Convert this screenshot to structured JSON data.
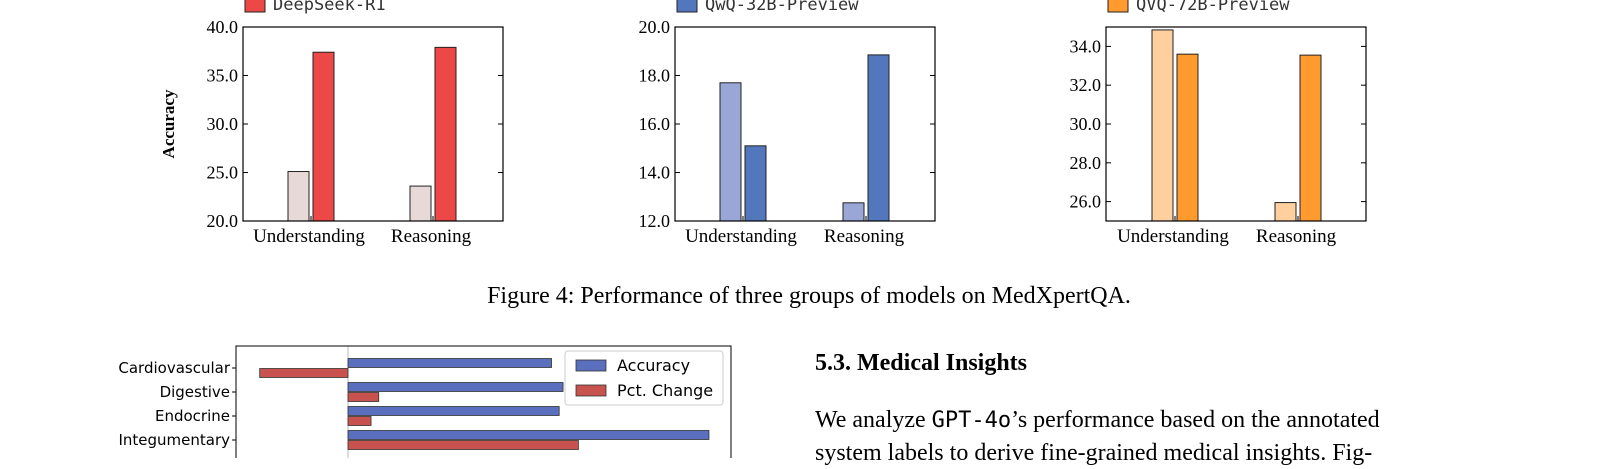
{
  "chart_data": [
    {
      "type": "bar",
      "legend": [
        "DeepSeek-R1"
      ],
      "ylabel": "Accuracy",
      "categories": [
        "Understanding",
        "Reasoning"
      ],
      "ylim": [
        20.0,
        40.0
      ],
      "yticks": [
        "20.0",
        "25.0",
        "30.0",
        "35.0",
        "40.0"
      ],
      "yvalues": [
        20,
        25,
        30,
        35,
        40
      ],
      "series": [
        {
          "values": [
            25.1,
            23.6
          ],
          "color": "#e8d9d9"
        },
        {
          "name": "DeepSeek-R1",
          "values": [
            37.4,
            37.9
          ],
          "color": "#ec4848"
        }
      ]
    },
    {
      "type": "bar",
      "legend": [
        "QwQ-32B-Preview"
      ],
      "categories": [
        "Understanding",
        "Reasoning"
      ],
      "ylim": [
        12.0,
        20.0
      ],
      "yticks": [
        "12.0",
        "14.0",
        "16.0",
        "18.0",
        "20.0"
      ],
      "yvalues": [
        12,
        14,
        16,
        18,
        20
      ],
      "series": [
        {
          "values": [
            17.7,
            12.75
          ],
          "color": "#9aa6d6"
        },
        {
          "name": "QwQ-32B-Preview",
          "values": [
            15.1,
            18.85
          ],
          "color": "#5377bd"
        }
      ]
    },
    {
      "type": "bar",
      "legend": [
        "QVQ-72B-Preview"
      ],
      "categories": [
        "Understanding",
        "Reasoning"
      ],
      "ylim": [
        25.0,
        35.0
      ],
      "yticks": [
        "26.0",
        "28.0",
        "30.0",
        "32.0",
        "34.0"
      ],
      "yvalues": [
        26,
        28,
        30,
        32,
        34
      ],
      "series": [
        {
          "values": [
            34.85,
            25.95
          ],
          "color": "#ffcf9e"
        },
        {
          "name": "QVQ-72B-Preview",
          "values": [
            33.6,
            33.55
          ],
          "color": "#ff9a2e"
        }
      ]
    },
    {
      "type": "bar",
      "orientation": "horizontal",
      "categories": [
        "Cardiovascular",
        "Digestive",
        "Endocrine",
        "Integumentary"
      ],
      "legend": [
        "Accuracy",
        "Pct. Change"
      ],
      "series": [
        {
          "name": "Accuracy",
          "values": [
            0.53,
            0.56,
            0.55,
            0.94
          ],
          "color": "#5b6fbf"
        },
        {
          "name": "Pct. Change",
          "values": [
            -0.23,
            0.08,
            0.06,
            0.6
          ],
          "color": "#c8534e"
        }
      ]
    }
  ],
  "caption": "Figure 4: Performance of three groups of models on MedXpertQA.",
  "section": {
    "title": "5.3. Medical Insights",
    "text_pre": "We analyze ",
    "model": "GPT-4o",
    "text_post": "’s performance based on the annotated",
    "line2": "system labels to derive fine-grained medical insights. Fig-"
  }
}
